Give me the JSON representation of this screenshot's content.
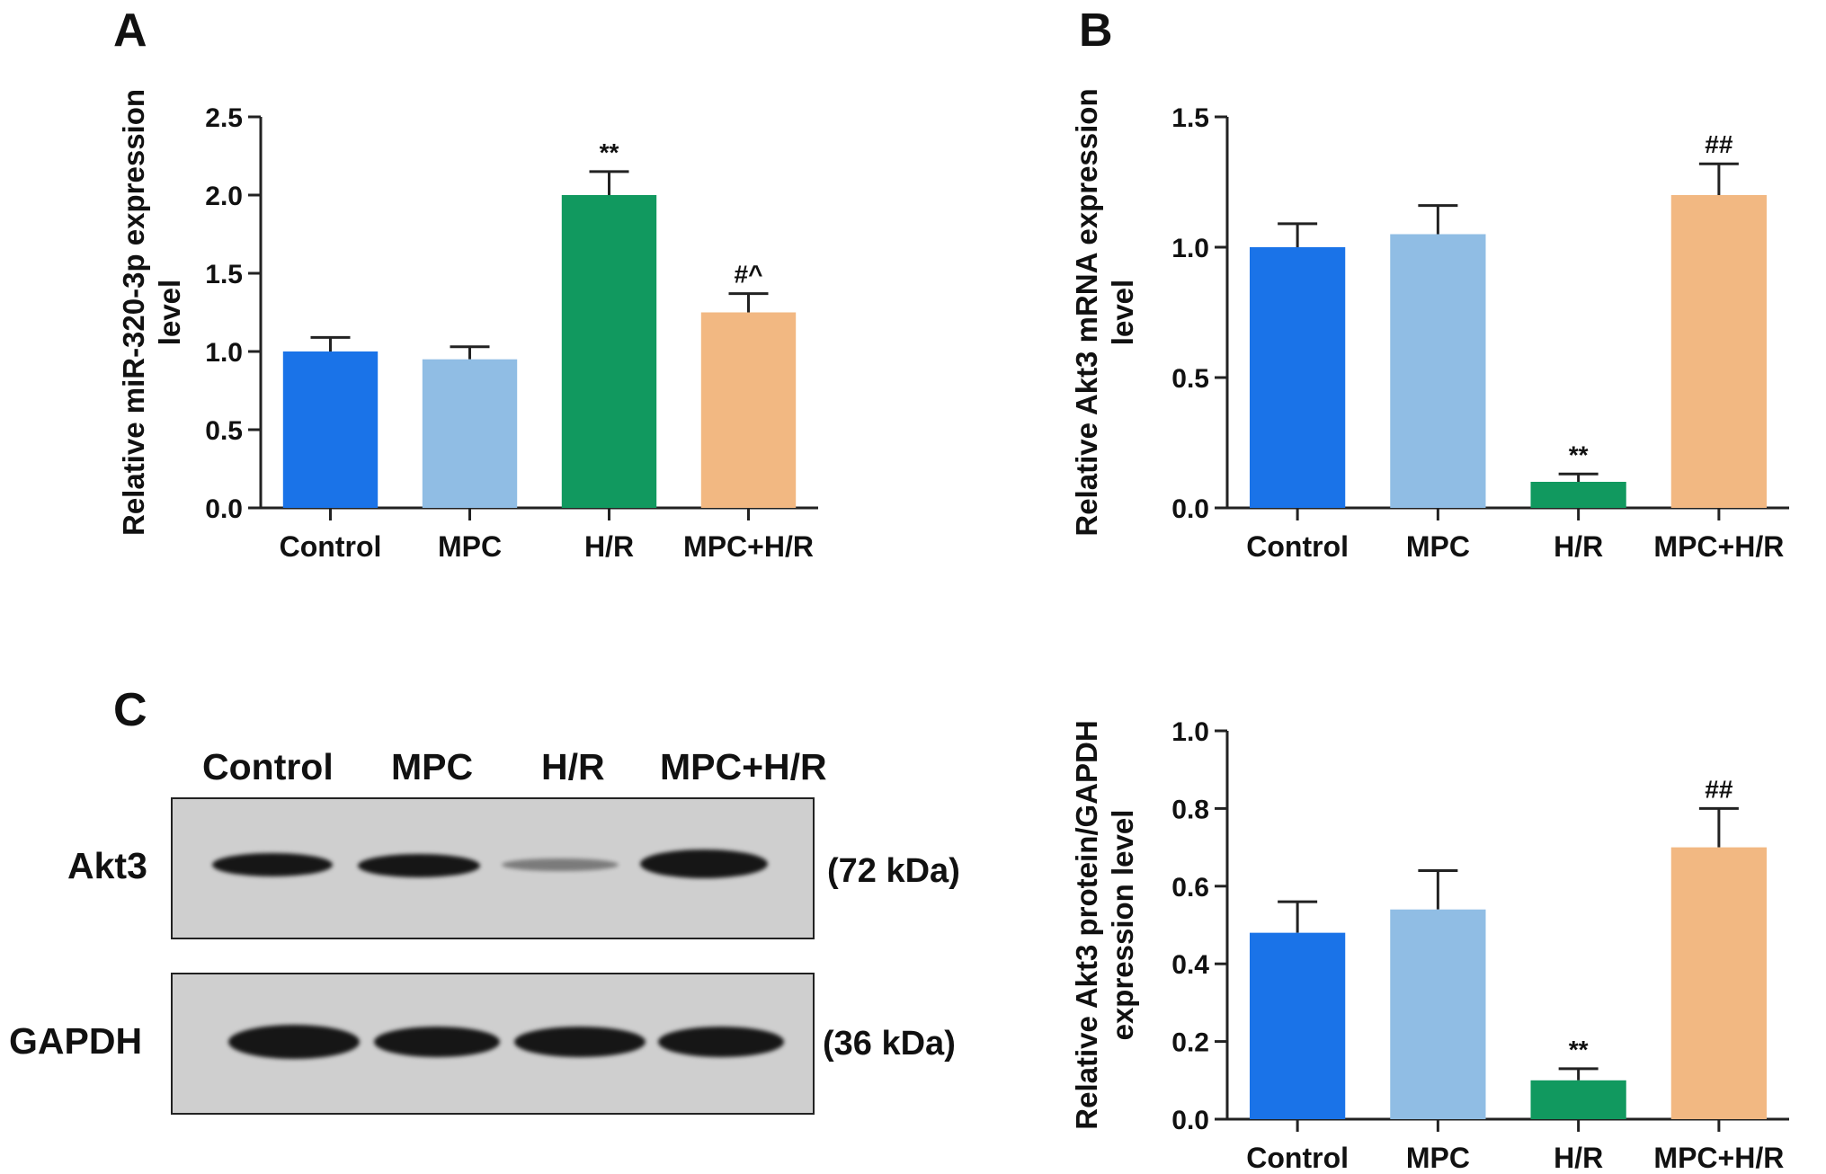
{
  "panels": {
    "a": "A",
    "b": "B",
    "c": "C"
  },
  "colors": {
    "Control": "#1a73e8",
    "MPC": "#90bde4",
    "H/R": "#11995f",
    "MPC+H/R": "#f2b882"
  },
  "chart_data": [
    {
      "type": "bar",
      "panel": "A",
      "categories": [
        "Control",
        "MPC",
        "H/R",
        "MPC+H/R"
      ],
      "values": [
        1.0,
        0.95,
        2.0,
        1.25
      ],
      "errors": [
        0.09,
        0.08,
        0.15,
        0.12
      ],
      "annotations": [
        "",
        "",
        "**",
        "#^"
      ],
      "ylabel_lines": [
        "Relative miR-320-3p expression",
        "level"
      ],
      "yticks": [
        "0.0",
        "0.5",
        "1.0",
        "1.5",
        "2.0",
        "2.5"
      ],
      "ylim": [
        0,
        2.5
      ]
    },
    {
      "type": "bar",
      "panel": "B",
      "categories": [
        "Control",
        "MPC",
        "H/R",
        "MPC+H/R"
      ],
      "values": [
        1.0,
        1.05,
        0.1,
        1.2
      ],
      "errors": [
        0.09,
        0.11,
        0.03,
        0.12
      ],
      "annotations": [
        "",
        "",
        "**",
        "##"
      ],
      "ylabel_lines": [
        "Relative  Akt3  mRNA expression",
        "level"
      ],
      "yticks": [
        "0.0",
        "0.5",
        "1.0",
        "1.5"
      ],
      "ylim": [
        0,
        1.5
      ]
    },
    {
      "type": "bar",
      "panel": "C",
      "categories": [
        "Control",
        "MPC",
        "H/R",
        "MPC+H/R"
      ],
      "values": [
        0.48,
        0.54,
        0.1,
        0.7
      ],
      "errors": [
        0.08,
        0.1,
        0.03,
        0.1
      ],
      "annotations": [
        "",
        "",
        "**",
        "##"
      ],
      "ylabel_lines": [
        "Relative  Akt3 protein/GAPDH",
        "expression level"
      ],
      "yticks": [
        "0.0",
        "0.2",
        "0.4",
        "0.6",
        "0.8",
        "1.0"
      ],
      "ylim": [
        0,
        1.0
      ]
    }
  ],
  "blot": {
    "lanes": [
      "Control",
      "MPC",
      "H/R",
      "MPC+H/R"
    ],
    "rows": [
      {
        "label": "Akt3",
        "size": "(72 kDa)",
        "intensity": [
          0.9,
          0.9,
          0.2,
          1.0
        ]
      },
      {
        "label": "GAPDH",
        "size": "(36 kDa)",
        "intensity": [
          1.0,
          0.95,
          0.95,
          0.95
        ]
      }
    ]
  }
}
